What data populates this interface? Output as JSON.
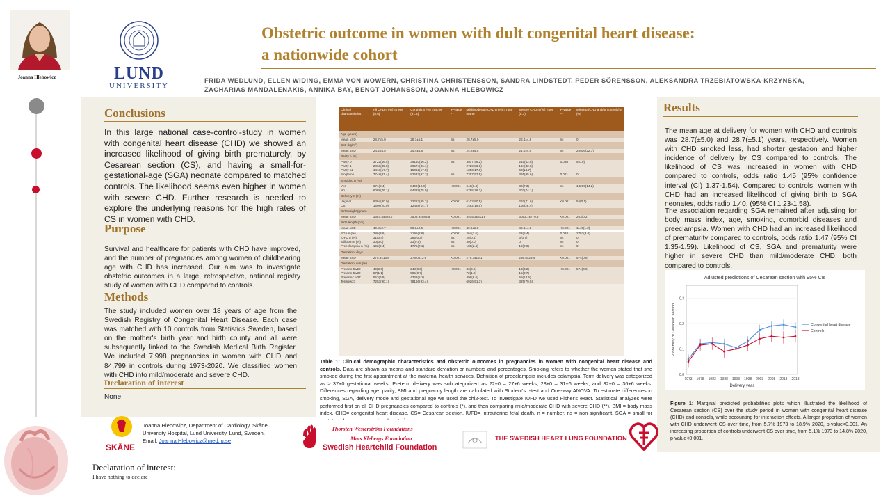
{
  "header": {
    "title_line1": "Obstetric outcome in women with dult congenital heart disease:",
    "title_line2": "a nationwide cohort",
    "authors_line1": "FRIDA WEDLUND, ELLEN WIDING, EMMA VON WOWERN, CHRISTINA CHRISTENSSON, SANDRA LINDSTEDT, PEDER SÖRENSSON, ALEKSANDRA TRZEBIATOWSKA-KRZYNSKA,",
    "authors_line2": "ZACHARIAS MANDALENAKIS, ANNIKA BAY, BENGT JOHANSSON, JOANNA HLEBOWICZ",
    "presenter_name": "Joanna Hlebowicz"
  },
  "logo": {
    "lund": "LUND",
    "university": "UNIVERSITY"
  },
  "conclusions": {
    "heading": "Conclusions",
    "text": "In this large national case-control-study in women with congenital heart disease (CHD) we showed an increased likelihood of giving birth prematurely, by Cesarean section (CS), and having a small-for-gestational-age (SGA) neonate compared to matched controls. The likelihood seems even higher in women with severe CHD. Further research is needed to explore the underlying reasons for the high rates of CS in women with CHD."
  },
  "purpose": {
    "heading": "Purpose",
    "text": "Survival and healthcare for patients with CHD have improved, and the number of pregnancies among women of childbearing age with CHD has increased. Our aim was to investigate obstetric outcomes in a large, retrospective, national registry study of women with CHD compared to controls."
  },
  "methods": {
    "heading": "Methods",
    "text": "The study included women over 18 years of age from the Swedish Registry of Congenital Heart Disease. Each case was matched with 10 controls from Statistics Sweden, based on the mother's birth year and birth county and all were subsequently linked to the Swedish Medical Birth Register. We included 7,998 pregnancies in women with CHD and 84,799 in controls during 1973-2020. We classified women with CHD into mild/moderate and severe CHD."
  },
  "declaration_box": {
    "heading": "Declaration of interest",
    "text": "None."
  },
  "contact": {
    "line1": "Joanna Hlebowicz, Department of Cardiology, Skåne",
    "line2": "University Hospital, Lund University, Lund, Sweden.",
    "email_label": "Email:",
    "email": "Joanna.Hlebowicz@med.lu.se",
    "skane_logo_text": "SKÅNE"
  },
  "declaration_footer": {
    "heading": "Declaration of interest:",
    "text": "I have nothing to declare"
  },
  "table": {
    "headers": [
      "Clinical characteristics",
      "All CHD n (%) =7998 (8.6)",
      "Controls n (%) =84799 (91.4)",
      "P-value *",
      "Mild/moderate CHD n (%) =7589 (94.9)",
      "Severe CHD n (%) =409 (5.1)",
      "P-value **",
      "Missing (CHD and/or controls) n (%)"
    ],
    "groups": [
      {
        "label": "Age (years)",
        "rows": [
          [
            "Mean ±SD",
            "28.7±5.0",
            "28.7±5.1",
            "ns",
            "28.7±5.0",
            "28.4±4.8",
            "ns",
            "0"
          ]
        ]
      },
      {
        "label": "BMI (kg/m²)",
        "rows": [
          [
            "Mean ±SD",
            "24.2±4.5",
            "24.4±4.6",
            "ns",
            "24.2±4.5",
            "24.0±4.6",
            "ns",
            "20506(22.1)"
          ]
        ]
      },
      {
        "label": "Parity n (%)",
        "rows": [
          [
            "Parity 0",
            "3722(46.5)",
            "39140(46.2)",
            "ns",
            "3507(46.2)",
            "215(52.6)",
            "0.036",
            "5(0.0)"
          ],
          [
            "Parity 1",
            "2863(35.8)",
            "30574(36.1)",
            "",
            "2729(36.0)",
            "134(32.8)",
            "",
            ""
          ],
          [
            "Parity ≥2",
            "1413(17.7)",
            "15082(17.8)",
            "",
            "1353(17.8)",
            "60(14.7)",
            "",
            ""
          ],
          [
            "Singleton",
            "7748(97.4)",
            "82532(97.3)",
            "ns",
            "7357(97.5)",
            "391(95.6)",
            "0.021",
            "0"
          ]
        ]
      },
      {
        "label": "Smoking n (%)",
        "rows": [
          [
            "Yes",
            "671(8.4)",
            "8490(10.0)",
            "<0.001",
            "641(8.4)",
            "30(7.3)",
            "ns",
            "13219(14.2)"
          ],
          [
            "No",
            "6088(76.1)",
            "64429(75.9)",
            "",
            "5785(76.2)",
            "303(74.1)",
            "",
            ""
          ]
        ]
      },
      {
        "label": "Delivery n (%)",
        "rows": [
          [
            "Vaginal",
            "6394(80.0)",
            "72282(85.3)",
            "<0.001",
            "6102(80.5)",
            "292(71.6)",
            "<0.001",
            "55(0.1)"
          ],
          [
            "CS",
            "1598(20.0)",
            "12468(14.7)",
            "",
            "1482(19.5)",
            "116(28.4)",
            "",
            ""
          ]
        ]
      },
      {
        "label": "Birthweight (gram)",
        "rows": [
          [
            "Mean ±SD",
            "3387.4±625.7",
            "3505.9±585.5",
            "<0.001",
            "3405.3±611.9",
            "3053.7±770.3",
            "<0.001",
            "203(0.2)"
          ]
        ]
      },
      {
        "label": "Birth length (cm)",
        "rows": [
          [
            "Mean ±SD",
            "49.8±2.7",
            "50.3±2.6",
            "<0.001",
            "49.9±2.8",
            "48.3±4.1",
            "<0.001",
            "1145(1.2)"
          ]
        ]
      },
      {
        "label": "",
        "rows": [
          [
            "SGA n (%)",
            "286(3.6)",
            "2195(2.6)",
            "<0.001",
            "264(3.5)",
            "22(5.4)",
            "0.034",
            "2753(3.0)"
          ],
          [
            "IUFD n (%)",
            "31(0.4)",
            "285(0.3)",
            "ns",
            "28(0.4)",
            "3(0.7)",
            "ns",
            "0"
          ],
          [
            "Stillborn n (%)",
            "30(0.0)",
            "23(0.0)",
            "ns",
            "30(0.0)",
            "0",
            "ns",
            "0"
          ],
          [
            "Preeclampsia n (%)",
            "192(2.4)",
            "1775(2.1)",
            "ns",
            "180(2.4)",
            "12(2.9)",
            "ns",
            "0"
          ]
        ]
      },
      {
        "label": "Gestation, days",
        "rows": [
          [
            "Mean ±SD",
            "275.8±15.8",
            "278.0±13.6",
            "<0.001",
            "276.3±15.1",
            "266.8±23.4",
            "<0.001",
            "574(0.6)"
          ]
        ]
      },
      {
        "label": "Gestation, w n (%)",
        "rows": [
          [
            "Preterm 5w28",
            "49(0.6)",
            "248(0.3)",
            "<0.001",
            "36(0.5)",
            "13(3.2)",
            "<0.001",
            "574(0.6)"
          ],
          [
            "Preterm 5w32",
            "87(1.1)",
            "585(0.7)",
            "",
            "72(1.0)",
            "15(3.7)",
            "",
            ""
          ],
          [
            "Preterm< w37",
            "553(6.9)",
            "4268(5.1)",
            "",
            "498(6.6)",
            "55(13.5)",
            "",
            ""
          ],
          [
            "Term≥w37",
            "7253(90.1)",
            "78166(93.4)",
            "",
            "6926(91.3)",
            "325(79.5)",
            "",
            ""
          ]
        ]
      }
    ]
  },
  "table_caption": {
    "bold": "Table 1: Clinical demographic characteristics and obstetric outcomes in pregnancies in women with congenital heart disease and controls.",
    "text": " Data are shown as means and standard deviation or numbers and percentages. Smoking refers to whether the woman stated that she smoked during the first appointment at the maternal health services. Definition of preeclampsia includes eclampsia. Term delivery was categorized as ≥ 37+0 gestational weeks. Preterm delivery was subcategorized as 22+0 – 27+6 weeks, 28+0 – 31+6 weeks, and 32+0 – 36+6 weeks. Differences regarding age, parity, BMI and pregnancy length are calculated with Student's t-test and One-way ANOVA. To estimate differences in smoking, SGA, delivery mode and gestational age we used the chi2-test. To investigate IUFD we used Fisher's exact. Statistical analyzes were performed first on all CHD pregnancies compared to controls (*), and then comparing mild/moderate CHD with severe CHD (**). BMI = body mass index. CHD= congenital heart disease. CS= Cesarean section. IUFD= intrauterine fetal death. n = number. ns = non-significant. SGA = small for gestational age. w= completed gestational weeks."
  },
  "results": {
    "heading": "Results",
    "p1": "The mean age at delivery for women with CHD and controls was 28.7(±5.0) and 28.7(±5.1) years, respectively. Women with CHD smoked less, had shorter gestation and higher incidence of delivery by CS compared to controls. The likelihood of CS was increased in women with CHD compared to controls, odds ratio 1.45 (95% confidence interval (CI) 1.37-1.54). Compared to controls, women with CHD had an increased likelihood of giving birth to SGA neonates, odds radio 1.40, (95% CI 1.23-1.58).",
    "p2": "The association regarding SGA remained after adjusting for body mass index, age, smoking, comorbid diseases and preeclampsia. Women with CHD had an increased likelihood of prematurity compared to controls, odds ratio 1.47 (95% CI 1.35-1.59). Likelihood of CS, SGA and prematurity were higher in severe CHD than mild/moderate CHD; both compared to controls."
  },
  "figure_caption": {
    "bold": "Figure 1:",
    "text": " Marginal predicted probabilities plots which illustrated the likelihood of Cesarean section (CS) over the study period in women with congenital heart disease (CHD) and controls, while accounting for interaction effects. A larger proportion of women with CHD underwent CS over time, from 5.7% 1973 to 18.9% 2020, p-value<0.001. An increasing proportion of controls underwent CS over time, from 5.1% 1973 to 14.8% 2020, p-value<0.001."
  },
  "sponsors": {
    "twf_line1": "Thorsten Westerström Foundations",
    "twf_line2": "Mats Klebergs Foundation",
    "twf_line3": "Swedish Heartchild Foundation",
    "shlf": "THE SWEDISH HEART LUNG FOUNDATION"
  },
  "colors": {
    "accent": "#b0822e",
    "panel": "#f2efe7",
    "table_header": "#9e5a1c",
    "red": "#c8102e",
    "chd_line": "#4a90d9",
    "control_line": "#c8102e"
  },
  "chart_data": {
    "type": "line",
    "title": "Adjusted predictions of Cesarean section with 95% CIs",
    "xlabel": "Delivery year",
    "ylabel": "Probability of Cesarean section",
    "x": [
      1973,
      1978,
      1983,
      1988,
      1993,
      1998,
      2003,
      2008,
      2013,
      2018
    ],
    "xticks": [
      "1973",
      "1978",
      "1983",
      "1988",
      "1993",
      "1998",
      "2003",
      "2008",
      "2013",
      "2018"
    ],
    "ylim": [
      0.0,
      0.35
    ],
    "series": [
      {
        "name": "Congenital heart disease",
        "values": [
          0.06,
          0.12,
          0.125,
          0.12,
          0.105,
          0.13,
          0.175,
          0.19,
          0.195,
          0.185
        ]
      },
      {
        "name": "Controls",
        "values": [
          0.05,
          0.115,
          0.12,
          0.09,
          0.1,
          0.115,
          0.14,
          0.15,
          0.145,
          0.15
        ]
      }
    ],
    "legend": "right"
  }
}
